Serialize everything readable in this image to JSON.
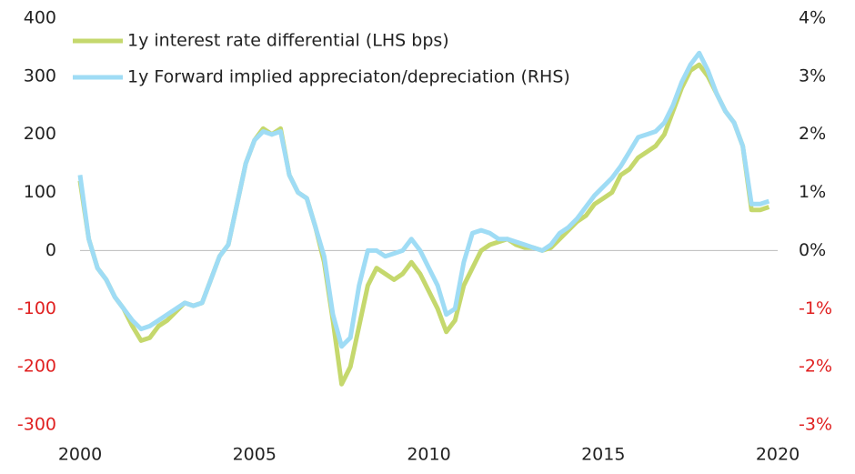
{
  "chart_data": {
    "type": "line",
    "x": [
      2000,
      2000.25,
      2000.5,
      2000.75,
      2001,
      2001.25,
      2001.5,
      2001.75,
      2002,
      2002.25,
      2002.5,
      2002.75,
      2003,
      2003.25,
      2003.5,
      2003.75,
      2004,
      2004.25,
      2004.5,
      2004.75,
      2005,
      2005.25,
      2005.5,
      2005.75,
      2006,
      2006.25,
      2006.5,
      2006.75,
      2007,
      2007.25,
      2007.5,
      2007.75,
      2008,
      2008.25,
      2008.5,
      2008.75,
      2009,
      2009.25,
      2009.5,
      2009.75,
      2010,
      2010.25,
      2010.5,
      2010.75,
      2011,
      2011.25,
      2011.5,
      2011.75,
      2012,
      2012.25,
      2012.5,
      2012.75,
      2013,
      2013.25,
      2013.5,
      2013.75,
      2014,
      2014.25,
      2014.5,
      2014.75,
      2015,
      2015.25,
      2015.5,
      2015.75,
      2016,
      2016.25,
      2016.5,
      2016.75,
      2017,
      2017.25,
      2017.5,
      2017.75,
      2018,
      2018.25,
      2018.5,
      2018.75,
      2019,
      2019.25,
      2019.5,
      2019.75
    ],
    "series": [
      {
        "name": "1y interest rate differential (LHS bps)",
        "color": "#c5d86d",
        "values": [
          120,
          20,
          -30,
          -50,
          -80,
          -100,
          -130,
          -155,
          -150,
          -130,
          -120,
          -105,
          -90,
          -95,
          -90,
          -50,
          -10,
          10,
          80,
          150,
          190,
          210,
          200,
          210,
          130,
          100,
          90,
          40,
          -20,
          -120,
          -230,
          -200,
          -130,
          -60,
          -30,
          -40,
          -50,
          -40,
          -20,
          -40,
          -70,
          -100,
          -140,
          -120,
          -60,
          -30,
          0,
          10,
          15,
          20,
          10,
          5,
          5,
          0,
          5,
          20,
          35,
          50,
          60,
          80,
          90,
          100,
          130,
          140,
          160,
          170,
          180,
          200,
          240,
          280,
          310,
          320,
          300,
          270,
          240,
          220,
          180,
          70,
          70,
          75
        ]
      },
      {
        "name": "1y Forward implied appreciaton/depreciation (RHS)",
        "color": "#9fdcf5",
        "axis": "y2",
        "values": [
          1.3,
          0.2,
          -0.3,
          -0.5,
          -0.8,
          -1.0,
          -1.2,
          -1.35,
          -1.3,
          -1.2,
          -1.1,
          -1.0,
          -0.9,
          -0.95,
          -0.9,
          -0.5,
          -0.1,
          0.1,
          0.8,
          1.5,
          1.9,
          2.05,
          2.0,
          2.05,
          1.3,
          1.0,
          0.9,
          0.4,
          -0.1,
          -1.1,
          -1.65,
          -1.5,
          -0.6,
          0.0,
          0.0,
          -0.1,
          -0.05,
          0.0,
          0.2,
          0.0,
          -0.3,
          -0.6,
          -1.1,
          -1.0,
          -0.2,
          0.3,
          0.35,
          0.3,
          0.2,
          0.2,
          0.15,
          0.1,
          0.05,
          0.0,
          0.1,
          0.3,
          0.4,
          0.55,
          0.75,
          0.95,
          1.1,
          1.25,
          1.45,
          1.7,
          1.95,
          2.0,
          2.05,
          2.2,
          2.5,
          2.9,
          3.2,
          3.4,
          3.1,
          2.7,
          2.4,
          2.2,
          1.8,
          0.8,
          0.8,
          0.85
        ]
      }
    ],
    "xlim": [
      2000,
      2020
    ],
    "xticks": [
      2000,
      2005,
      2010,
      2015,
      2020
    ],
    "ylim": [
      -300,
      400
    ],
    "yticks": [
      -300,
      -200,
      -100,
      0,
      100,
      200,
      300,
      400
    ],
    "y2lim": [
      -3,
      4
    ],
    "y2ticks": [
      {
        "value": -3,
        "label": "-3%"
      },
      {
        "value": -2,
        "label": "-2%"
      },
      {
        "value": -1,
        "label": "-1%"
      },
      {
        "value": 0,
        "label": "0%"
      },
      {
        "value": 1,
        "label": "1%"
      },
      {
        "value": 2,
        "label": "2%"
      },
      {
        "value": 3,
        "label": "3%"
      },
      {
        "value": 4,
        "label": "4%"
      }
    ],
    "negative_tick_color": "#e02020",
    "legend": "upper left"
  }
}
